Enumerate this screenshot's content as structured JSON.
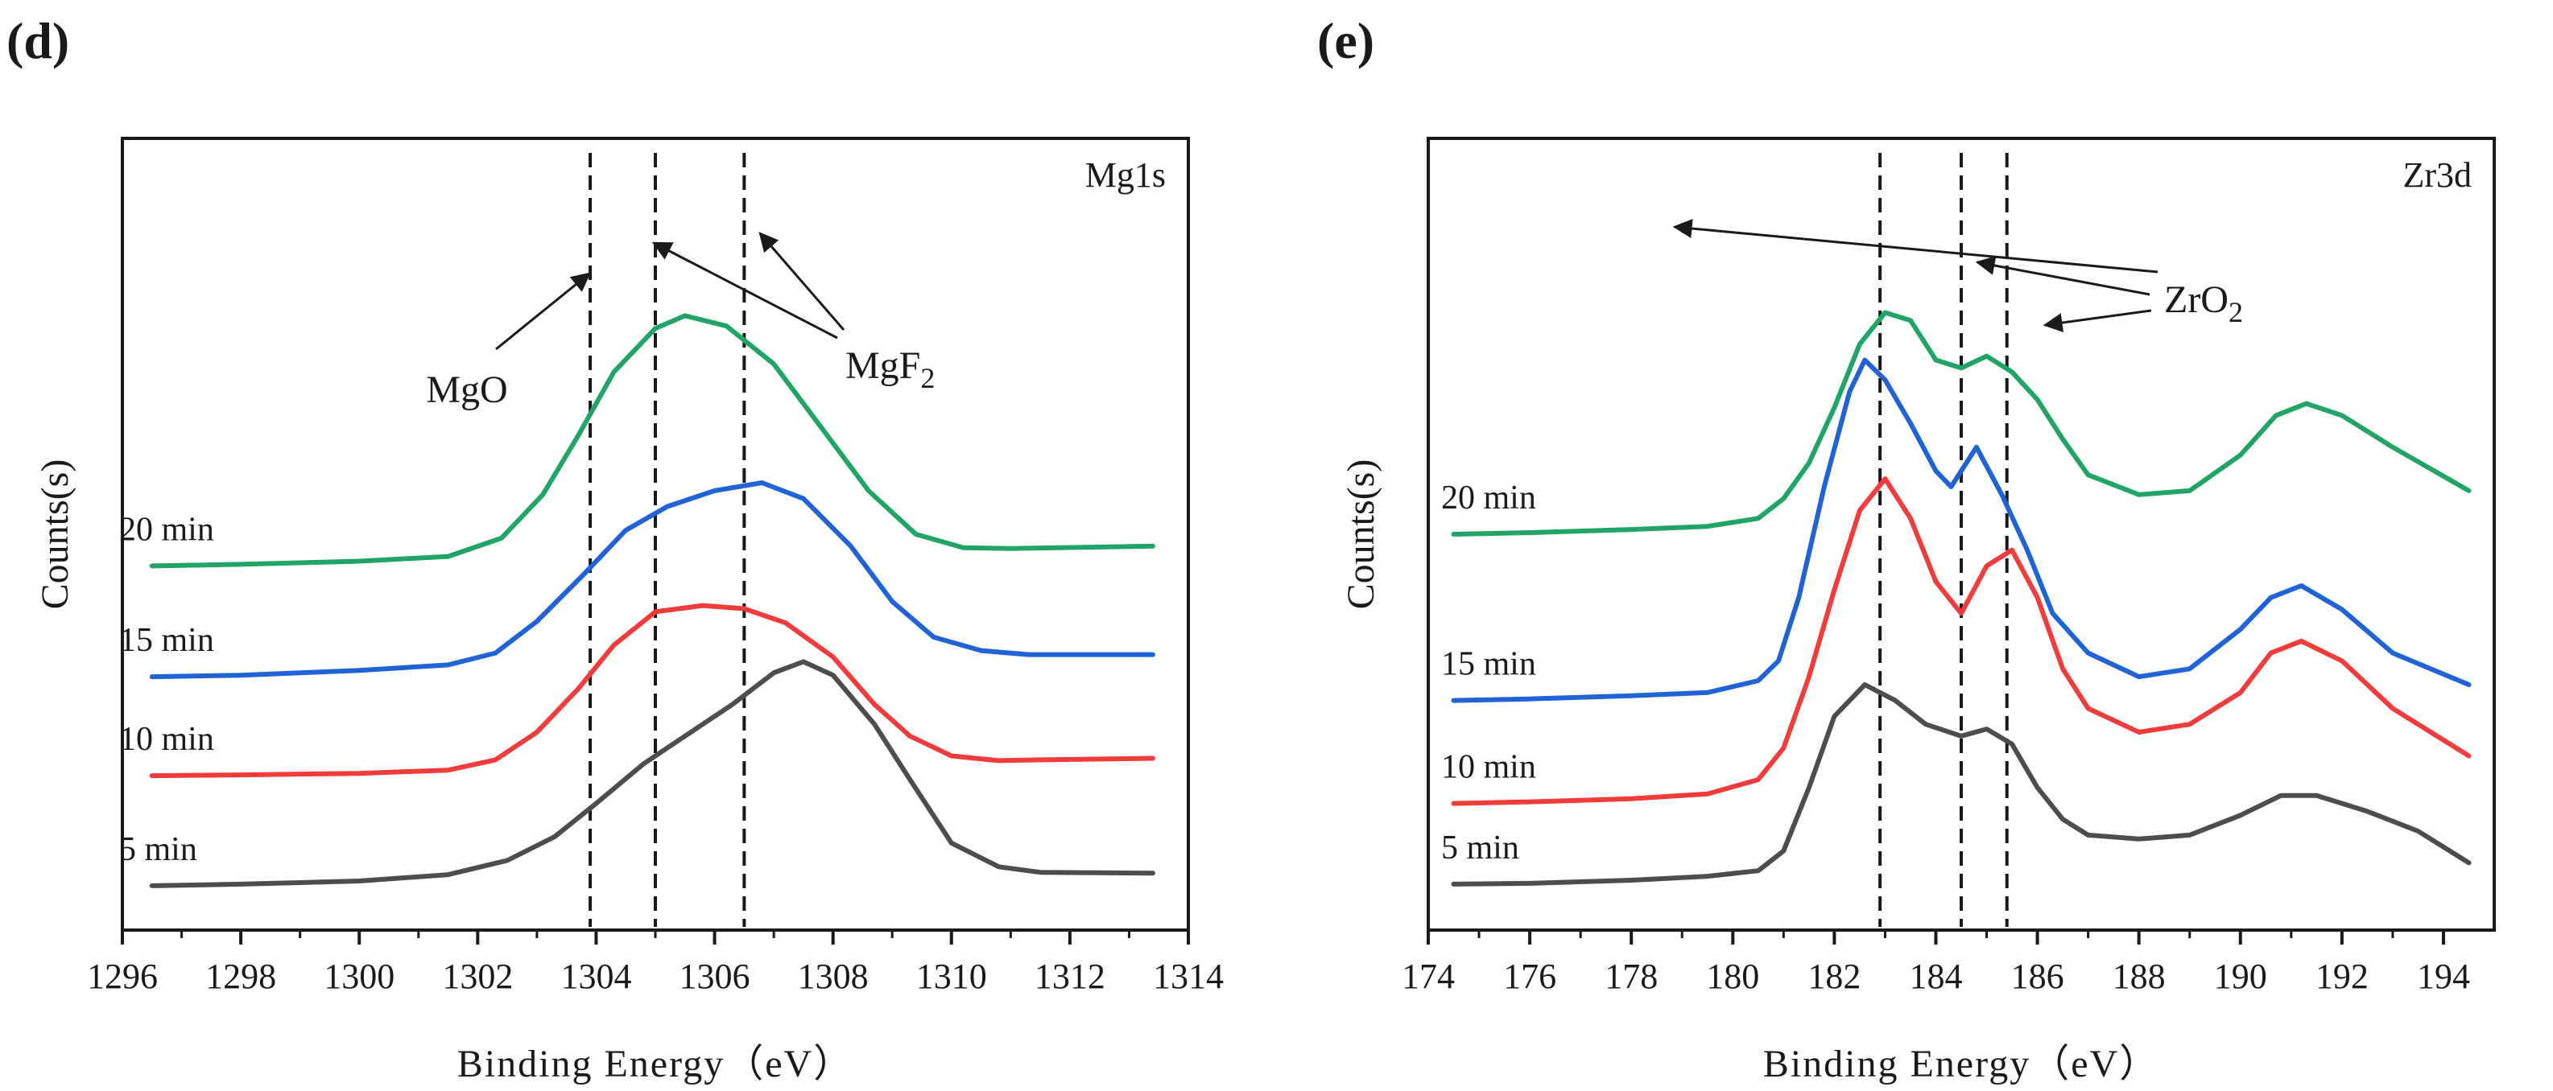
{
  "chart_data": [
    {
      "type": "line",
      "panel_label": "(d)",
      "title": "Mg1s",
      "xlabel": "Binding Energy（eV）",
      "ylabel": "Counts(s)",
      "xlim": [
        1296,
        1314
      ],
      "ylim": [
        0,
        100
      ],
      "x_ticks": [
        "1296",
        "1298",
        "1300",
        "1302",
        "1304",
        "1306",
        "1308",
        "1310",
        "1312",
        "1314"
      ],
      "grid": false,
      "series": [
        {
          "name": "5 min",
          "color": "#4d4d4d",
          "x": [
            1296.5,
            1298,
            1300,
            1301.5,
            1302.5,
            1303.3,
            1304,
            1304.8,
            1305.5,
            1306.3,
            1307,
            1307.5,
            1308,
            1308.7,
            1309.3,
            1310,
            1310.8,
            1311.5,
            1313.4
          ],
          "y": [
            5.6,
            5.8,
            6.2,
            7,
            8.8,
            11.8,
            16,
            21,
            24.5,
            28.5,
            32.5,
            33.9,
            32.2,
            26,
            19,
            11,
            8,
            7.3,
            7.2
          ]
        },
        {
          "name": "10 min",
          "color": "#f23b3b",
          "x": [
            1296.5,
            1298,
            1300,
            1301.5,
            1302.3,
            1303,
            1303.7,
            1304.3,
            1305,
            1305.8,
            1306.5,
            1307.2,
            1308,
            1308.7,
            1309.3,
            1310,
            1310.8,
            1311.5,
            1313.4
          ],
          "y": [
            19.5,
            19.6,
            19.8,
            20.2,
            21.5,
            25,
            30.5,
            36,
            40.2,
            41,
            40.6,
            38.8,
            34.5,
            28.5,
            24.5,
            22,
            21.4,
            21.5,
            21.7
          ]
        },
        {
          "name": "15 min",
          "color": "#1f63d6",
          "x": [
            1296.5,
            1298,
            1300,
            1301.5,
            1302.3,
            1303,
            1303.8,
            1304.5,
            1305.2,
            1306,
            1306.8,
            1307.5,
            1308.3,
            1309,
            1309.7,
            1310.5,
            1311.3,
            1313.4
          ],
          "y": [
            32,
            32.2,
            32.8,
            33.5,
            35,
            39,
            45,
            50.5,
            53.5,
            55.5,
            56.5,
            54.5,
            48.5,
            41.5,
            37,
            35.3,
            34.8,
            34.8
          ]
        },
        {
          "name": "20 min",
          "color": "#21a566",
          "x": [
            1296.5,
            1298,
            1300,
            1301.5,
            1302.4,
            1303.1,
            1303.7,
            1304.3,
            1305,
            1305.5,
            1306.2,
            1307,
            1307.8,
            1308.6,
            1309.4,
            1310.2,
            1311,
            1313.4
          ],
          "y": [
            46,
            46.2,
            46.6,
            47.2,
            49.5,
            55,
            62.5,
            70.5,
            76,
            77.6,
            76.3,
            71.5,
            63.5,
            55.5,
            50,
            48.3,
            48.2,
            48.5
          ]
        }
      ],
      "reference_lines_x": [
        1303.9,
        1305.0,
        1306.5
      ],
      "annotations": [
        {
          "text": "MgO",
          "x": 1302.2,
          "y": 66
        },
        {
          "text": "MgF",
          "subscript": "2",
          "x": 1308.3,
          "y": 67.5
        }
      ]
    },
    {
      "type": "line",
      "panel_label": "(e)",
      "title": "Zr3d",
      "xlabel": "Binding Energy（eV）",
      "ylabel": "Counts(s)",
      "xlim": [
        174,
        195
      ],
      "ylim": [
        0,
        100
      ],
      "x_ticks": [
        "174",
        "176",
        "178",
        "180",
        "182",
        "184",
        "186",
        "188",
        "190",
        "192",
        "194"
      ],
      "grid": false,
      "series": [
        {
          "name": "5 min",
          "color": "#4d4d4d",
          "x": [
            174.5,
            176,
            178,
            179.5,
            180.5,
            181,
            181.5,
            182,
            182.6,
            183.2,
            183.8,
            184.5,
            185,
            185.5,
            186,
            186.5,
            187,
            188,
            189,
            190,
            190.8,
            191.5,
            192.5,
            193.5,
            194.5
          ],
          "y": [
            5.8,
            5.9,
            6.3,
            6.8,
            7.5,
            10,
            18,
            27,
            31,
            29,
            26,
            24.5,
            25.4,
            23.5,
            18,
            14,
            12,
            11.5,
            12,
            14.5,
            17,
            17,
            15,
            12.5,
            8.5
          ]
        },
        {
          "name": "10 min",
          "color": "#f23b3b",
          "x": [
            174.5,
            176,
            178,
            179.5,
            180.5,
            181,
            181.5,
            182,
            182.5,
            183,
            183.5,
            184,
            184.5,
            185,
            185.5,
            186,
            186.5,
            187,
            188,
            189,
            190,
            190.6,
            191.2,
            192,
            193,
            194.5
          ],
          "y": [
            16,
            16.2,
            16.6,
            17.2,
            19,
            23,
            32,
            43,
            53,
            57,
            52,
            44,
            40,
            46,
            48,
            42,
            33,
            28,
            25,
            26,
            30,
            35,
            36.5,
            34,
            28,
            22
          ]
        },
        {
          "name": "15 min",
          "color": "#1f63d6",
          "x": [
            174.5,
            176,
            178,
            179.5,
            180.5,
            180.9,
            181.3,
            181.8,
            182.3,
            182.6,
            183,
            183.5,
            184,
            184.3,
            184.8,
            185.3,
            185.8,
            186.3,
            187,
            188,
            189,
            190,
            190.6,
            191.2,
            192,
            193,
            194.5
          ],
          "y": [
            29,
            29.2,
            29.6,
            30,
            31.5,
            34,
            42,
            56,
            68,
            72,
            69.5,
            64,
            58,
            56,
            61,
            55,
            48,
            40,
            35,
            32,
            33,
            38,
            42,
            43.5,
            40.5,
            35,
            31
          ]
        },
        {
          "name": "20 min",
          "color": "#21a566",
          "x": [
            174.5,
            176,
            178,
            179.5,
            180.5,
            181,
            181.5,
            182,
            182.5,
            183,
            183.5,
            184,
            184.5,
            185,
            185.5,
            186,
            186.5,
            187,
            188,
            189,
            190,
            190.7,
            191.3,
            192,
            193,
            194.5
          ],
          "y": [
            50,
            50.2,
            50.6,
            51,
            52,
            54.5,
            59,
            66,
            74,
            78,
            77,
            72,
            71,
            72.5,
            70.5,
            67,
            62,
            57.5,
            55,
            55.5,
            60,
            65,
            66.5,
            65,
            61,
            55.5
          ]
        }
      ],
      "reference_lines_x": [
        182.9,
        184.5,
        185.4
      ],
      "annotations": [
        {
          "text": "ZrO",
          "subscript": "2",
          "x": 188.7,
          "y": 75.8
        }
      ]
    }
  ]
}
